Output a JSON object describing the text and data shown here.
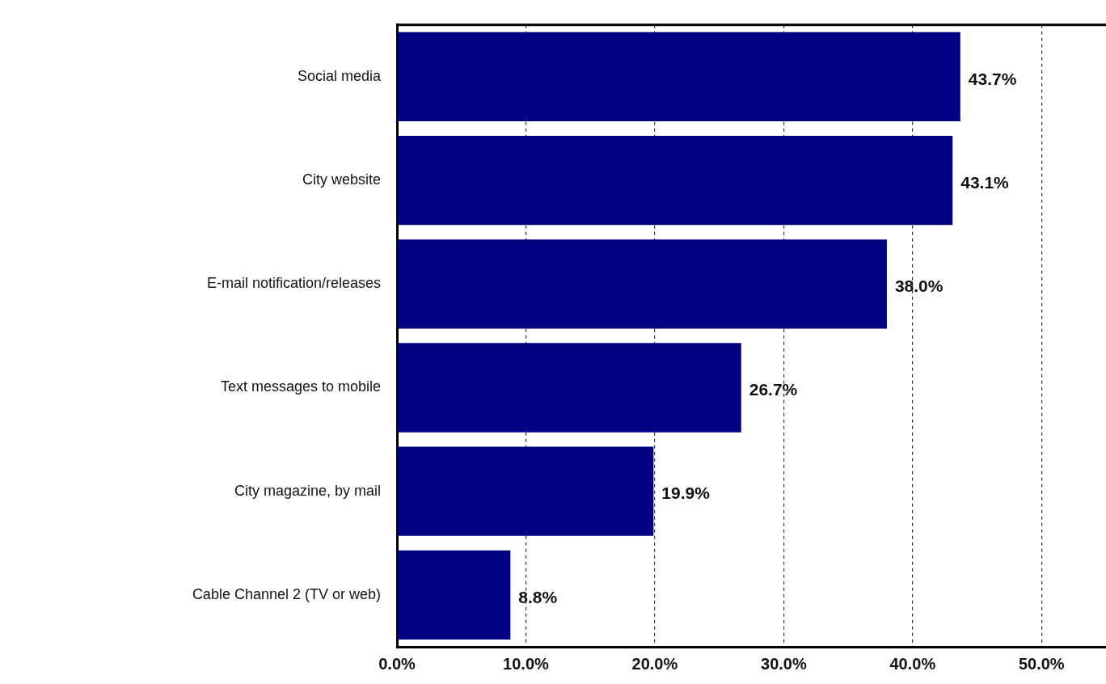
{
  "chart_data": {
    "type": "bar",
    "orientation": "horizontal",
    "categories": [
      "Social media",
      "City website",
      "E-mail notification/releases",
      "Text messages to mobile",
      "City magazine, by mail",
      "Cable Channel 2 (TV or web)"
    ],
    "values": [
      43.7,
      43.1,
      38.0,
      26.7,
      19.9,
      8.8
    ],
    "value_labels": [
      "43.7%",
      "43.1%",
      "38.0%",
      "26.7%",
      "19.9%",
      "8.8%"
    ],
    "color": "#000080",
    "xlim": [
      0,
      55
    ],
    "xticks": [
      {
        "value": 0,
        "label": "0.0%"
      },
      {
        "value": 10,
        "label": "10.0%"
      },
      {
        "value": 20,
        "label": "20.0%"
      },
      {
        "value": 30,
        "label": "30.0%"
      },
      {
        "value": 40,
        "label": "40.0%"
      },
      {
        "value": 50,
        "label": "50.0%"
      }
    ],
    "grid": "x",
    "legend": false
  }
}
